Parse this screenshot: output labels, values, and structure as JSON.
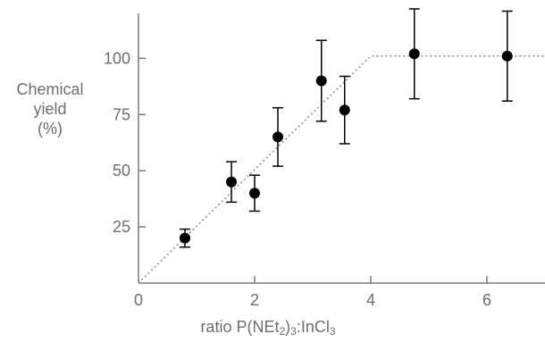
{
  "chart_data": {
    "type": "scatter",
    "ylabel_lines": [
      "Chemical",
      "yield",
      "(%)"
    ],
    "xlabel": {
      "prefix": "ratio P(NEt",
      "sub1": "2",
      "mid": ")",
      "sub2": "3",
      "mid2": ":InCl",
      "sub3": "3"
    },
    "xlim": [
      0,
      7
    ],
    "ylim": [
      0,
      120
    ],
    "x_ticks": [
      0,
      2,
      4,
      6
    ],
    "x_tick_labels": [
      "0",
      "2",
      "4",
      "6"
    ],
    "y_ticks": [
      25,
      50,
      75,
      100
    ],
    "y_tick_labels": [
      "25",
      "50",
      "75",
      "100"
    ],
    "grid": false,
    "points": [
      {
        "x": 0.8,
        "y": 20,
        "err_low": 16,
        "err_high": 24
      },
      {
        "x": 1.6,
        "y": 45,
        "err_low": 36,
        "err_high": 54
      },
      {
        "x": 2.0,
        "y": 40,
        "err_low": 32,
        "err_high": 48
      },
      {
        "x": 2.4,
        "y": 65,
        "err_low": 52,
        "err_high": 78
      },
      {
        "x": 3.15,
        "y": 90,
        "err_low": 72,
        "err_high": 108
      },
      {
        "x": 3.55,
        "y": 77,
        "err_low": 62,
        "err_high": 92
      },
      {
        "x": 4.75,
        "y": 102,
        "err_low": 82,
        "err_high": 122
      },
      {
        "x": 6.35,
        "y": 101,
        "err_low": 81,
        "err_high": 121
      }
    ],
    "trend_line": [
      {
        "x": 0,
        "y": 0
      },
      {
        "x": 4,
        "y": 101
      },
      {
        "x": 7,
        "y": 101
      }
    ],
    "colors": {
      "axis": "#7a7a7a",
      "marker": "#000000",
      "errorbar": "#000000",
      "trend": "#8a8a8a",
      "text": "#6e6e6e"
    }
  }
}
